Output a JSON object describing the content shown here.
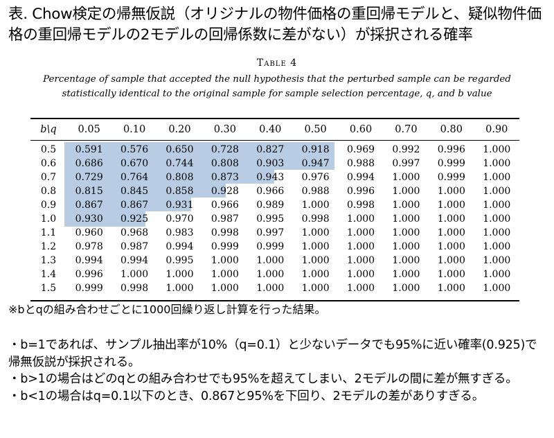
{
  "title": "表. Chow検定の帰無仮説（オリジナルの物件価格の重回帰モデルと、疑似物件価格の重回帰モデルの2モデルの回帰係数に差がない）が採択される確率",
  "table_caption": "Table 4",
  "table_description": "Percentage of sample that accepted the null hypothesis that the perturbed sample can be regarded statistically identical to the original sample for sample selection percentage, q, and b value",
  "highlight_color": "#b8cce4",
  "table": {
    "corner_header": "b\\q",
    "columns": [
      "0.05",
      "0.10",
      "0.20",
      "0.30",
      "0.40",
      "0.50",
      "0.60",
      "0.70",
      "0.80",
      "0.90"
    ],
    "rows": [
      {
        "b": "0.5",
        "values": [
          "0.591",
          "0.576",
          "0.650",
          "0.728",
          "0.827",
          "0.918",
          "0.969",
          "0.992",
          "0.996",
          "1.000"
        ]
      },
      {
        "b": "0.6",
        "values": [
          "0.686",
          "0.670",
          "0.744",
          "0.808",
          "0.903",
          "0.947",
          "0.988",
          "0.997",
          "0.999",
          "1.000"
        ]
      },
      {
        "b": "0.7",
        "values": [
          "0.729",
          "0.764",
          "0.808",
          "0.873",
          "0.943",
          "0.976",
          "0.994",
          "1.000",
          "0.999",
          "1.000"
        ]
      },
      {
        "b": "0.8",
        "values": [
          "0.815",
          "0.845",
          "0.858",
          "0.928",
          "0.966",
          "0.988",
          "0.996",
          "1.000",
          "1.000",
          "1.000"
        ]
      },
      {
        "b": "0.9",
        "values": [
          "0.867",
          "0.867",
          "0.931",
          "0.966",
          "0.989",
          "1.000",
          "0.998",
          "1.000",
          "1.000",
          "1.000"
        ]
      },
      {
        "b": "1.0",
        "values": [
          "0.930",
          "0.925",
          "0.970",
          "0.987",
          "0.995",
          "0.998",
          "1.000",
          "1.000",
          "1.000",
          "1.000"
        ]
      },
      {
        "b": "1.1",
        "values": [
          "0.960",
          "0.968",
          "0.983",
          "0.998",
          "0.997",
          "1.000",
          "1.000",
          "1.000",
          "1.000",
          "1.000"
        ]
      },
      {
        "b": "1.2",
        "values": [
          "0.978",
          "0.987",
          "0.994",
          "0.999",
          "0.999",
          "1.000",
          "1.000",
          "1.000",
          "1.000",
          "1.000"
        ]
      },
      {
        "b": "1.3",
        "values": [
          "0.994",
          "0.994",
          "0.995",
          "1.000",
          "1.000",
          "1.000",
          "1.000",
          "1.000",
          "1.000",
          "1.000"
        ]
      },
      {
        "b": "1.4",
        "values": [
          "0.996",
          "1.000",
          "1.000",
          "1.000",
          "1.000",
          "1.000",
          "1.000",
          "1.000",
          "1.000",
          "1.000"
        ]
      },
      {
        "b": "1.5",
        "values": [
          "0.999",
          "0.998",
          "1.000",
          "1.000",
          "1.000",
          "1.000",
          "1.000",
          "1.000",
          "1.000",
          "1.000"
        ]
      }
    ]
  },
  "note": "※bとqの組み合わせごとに1000回繰り返し計算を行った結果。",
  "bullets": [
    "・b=1であれば、サンプル抽出率が10%（q=0.1）と少ないデータでも95%に近い確率(0.925)で帰無仮説が採択される。",
    "・b>1の場合はどのqとの組み合わせでも95%を超えてしまい、2モデルの間に差が無すぎる。",
    "・b<1の場合はq=0.1以下のとき、0.867と95%を下回り、2モデルの差がありすぎる。"
  ]
}
